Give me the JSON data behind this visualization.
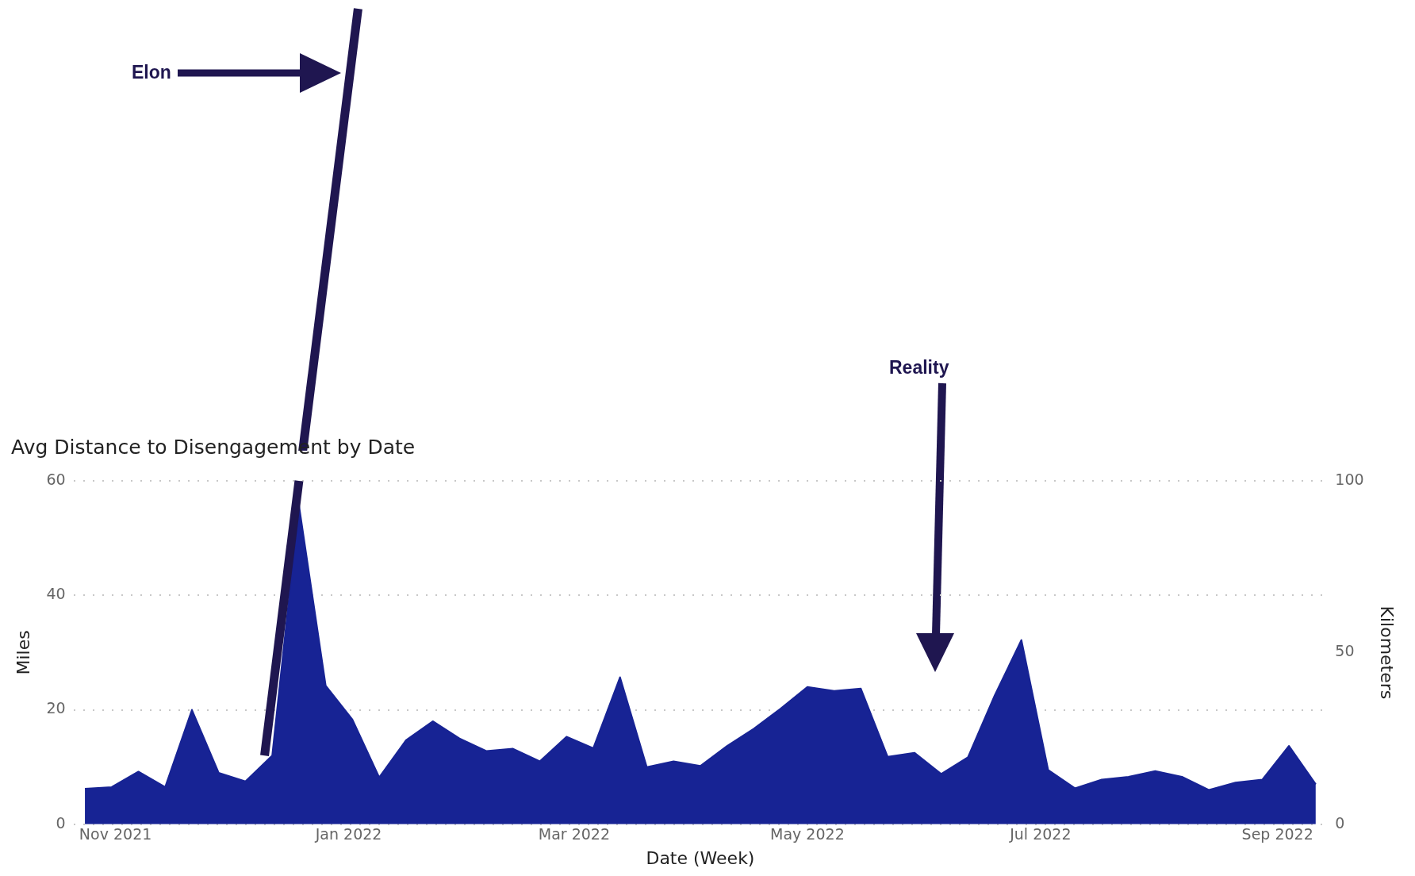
{
  "chart_data": {
    "type": "area",
    "title": "Avg Distance to Disengagement by Date",
    "xlabel": "Date (Week)",
    "ylabel": "Miles",
    "y2label": "Kilometers",
    "annotations": [
      "Elon",
      "Reality"
    ],
    "x": [
      "2021-10-24",
      "2021-10-31",
      "2021-11-07",
      "2021-11-14",
      "2021-11-21",
      "2021-11-28",
      "2021-12-05",
      "2021-12-12",
      "2021-12-19",
      "2021-12-26",
      "2022-01-02",
      "2022-01-09",
      "2022-01-16",
      "2022-01-23",
      "2022-01-30",
      "2022-02-06",
      "2022-02-13",
      "2022-02-20",
      "2022-02-27",
      "2022-03-06",
      "2022-03-13",
      "2022-03-20",
      "2022-03-27",
      "2022-04-03",
      "2022-04-10",
      "2022-04-17",
      "2022-04-24",
      "2022-05-01",
      "2022-05-08",
      "2022-05-15",
      "2022-05-22",
      "2022-05-29",
      "2022-06-05",
      "2022-06-12",
      "2022-06-19",
      "2022-06-26",
      "2022-07-03",
      "2022-07-10",
      "2022-07-17",
      "2022-07-24",
      "2022-07-31",
      "2022-08-07",
      "2022-08-14",
      "2022-08-21",
      "2022-08-28",
      "2022-09-04",
      "2022-09-11"
    ],
    "series": [
      {
        "type": "line",
        "color": "#1f1650",
        "x": [
          "2021-12-10",
          "2021-12-19"
        ],
        "values": [
          12,
          60
        ]
      },
      {
        "color": "#172394",
        "values": [
          6.2,
          6.5,
          9.2,
          6.5,
          20,
          9,
          7.5,
          12,
          55.8,
          24.2,
          18.3,
          8.2,
          14.7,
          18,
          15,
          12.8,
          13.2,
          11,
          15.3,
          13.3,
          25.7,
          10,
          11,
          10.2,
          13.7,
          16.7,
          20.2,
          24,
          23.3,
          23.7,
          11.8,
          12.5,
          8.8,
          11.7,
          22.5,
          32.2,
          9.5,
          6.3,
          7.8,
          8.3,
          9.3,
          8.3,
          6,
          7.3,
          7.8,
          13.7,
          7
        ]
      }
    ],
    "xlim": [
      "2021-10-21",
      "2022-09-14"
    ],
    "xticks": [
      {
        "value": "2021-11-01",
        "label": "Nov 2021"
      },
      {
        "value": "2022-01-01",
        "label": "Jan 2022"
      },
      {
        "value": "2022-03-01",
        "label": "Mar 2022"
      },
      {
        "value": "2022-05-01",
        "label": "May 2022"
      },
      {
        "value": "2022-07-01",
        "label": "Jul 2022"
      },
      {
        "value": "2022-09-01",
        "label": "Sep 2022"
      }
    ],
    "ylim": [
      0,
      60
    ],
    "yticks": [
      0,
      20,
      40,
      60
    ],
    "y2lim": [
      0,
      100
    ],
    "y2ticks": [
      0,
      50,
      100
    ],
    "grid": "y",
    "legend": false
  }
}
